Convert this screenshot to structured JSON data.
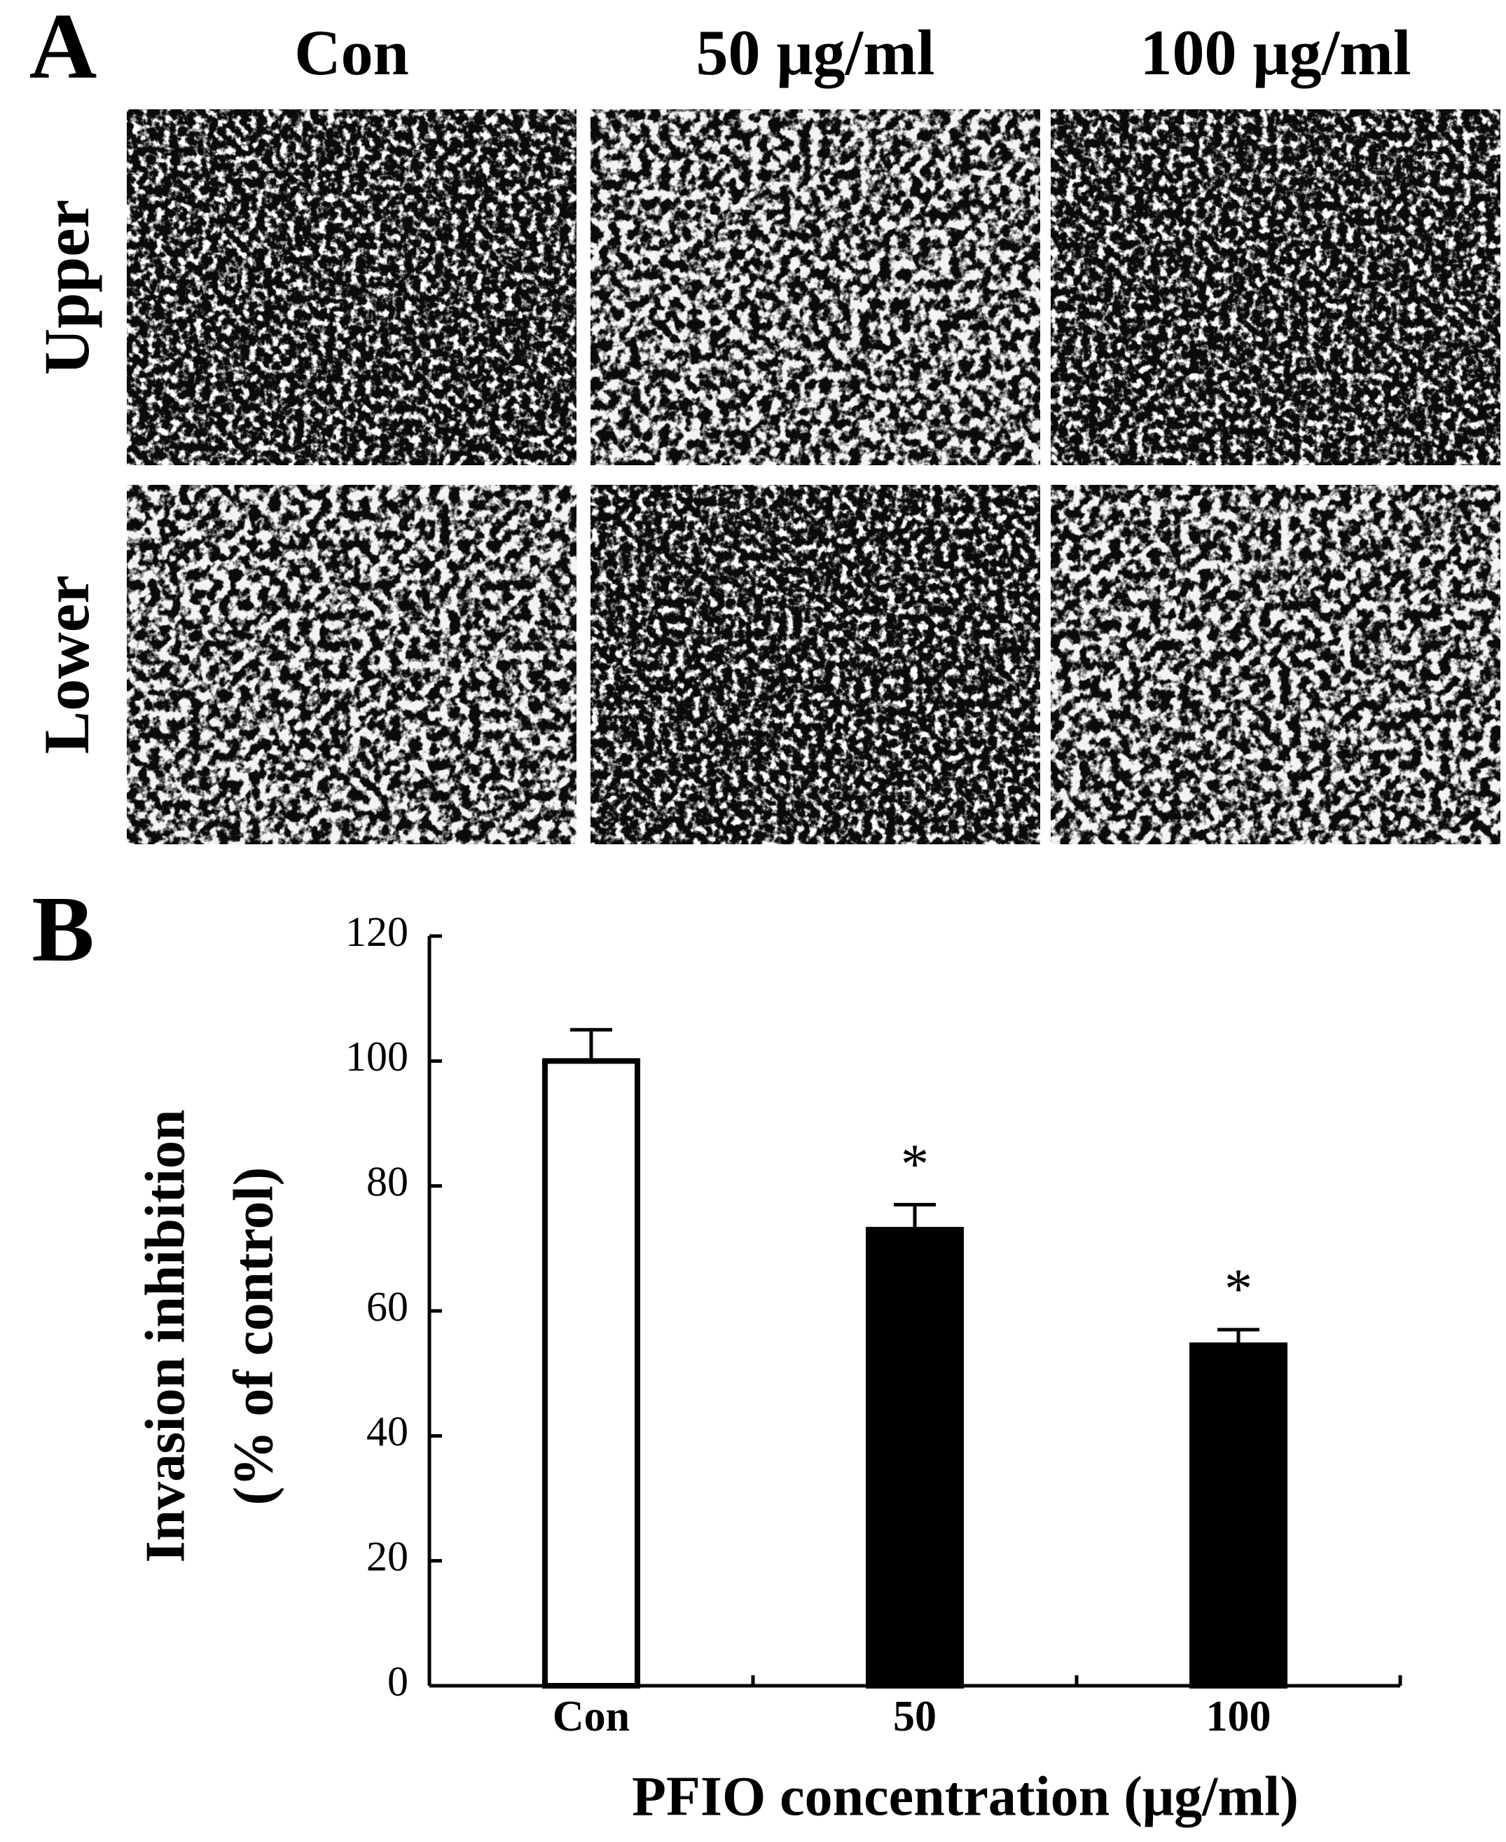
{
  "panel_a": {
    "label": "A",
    "columns": [
      "Con",
      "50 μg/ml",
      "100 μg/ml"
    ],
    "rows": [
      "Upper",
      "Lower"
    ]
  },
  "panel_b": {
    "label": "B"
  },
  "chart_data": {
    "type": "bar",
    "ylabel": [
      "Invasion inhibition",
      "(% of control)"
    ],
    "xlabel": "PFIO concentration (μg/ml)",
    "categories": [
      "Con",
      "50",
      "100"
    ],
    "values": [
      100,
      73,
      54.5
    ],
    "errors": [
      5,
      4,
      2.5
    ],
    "colors": [
      "#ffffff",
      "#000000",
      "#000000"
    ],
    "significance": [
      null,
      "*",
      "*"
    ],
    "ylim": [
      0,
      120
    ],
    "yticks": [
      0,
      20,
      40,
      60,
      80,
      100,
      120
    ],
    "grid": false
  }
}
